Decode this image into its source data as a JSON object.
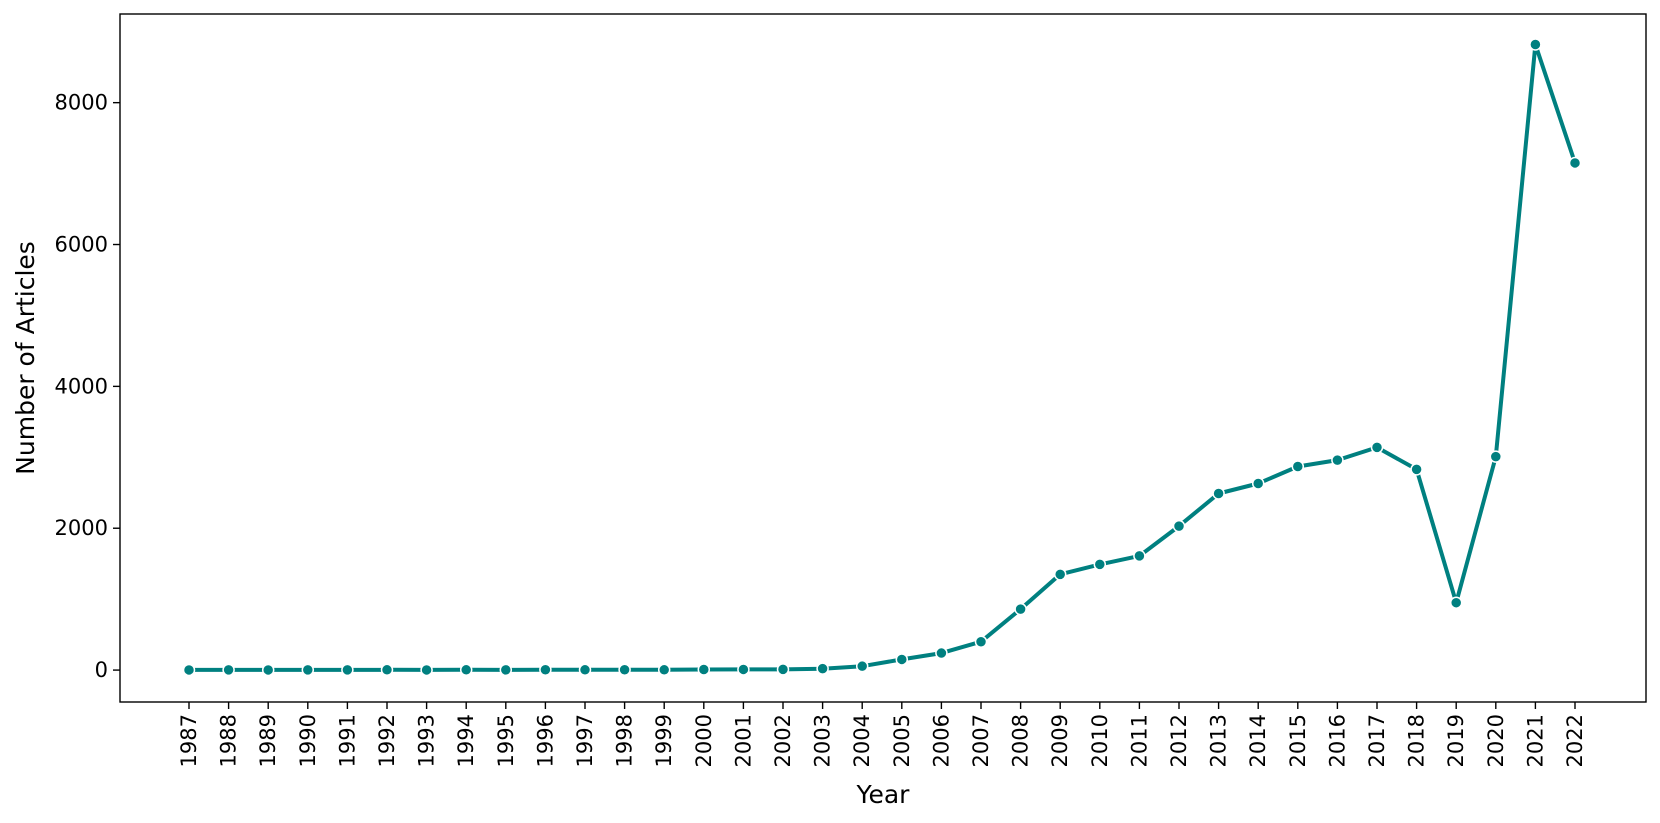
{
  "chart_data": {
    "type": "line",
    "title": "",
    "xlabel": "Year",
    "ylabel": "Number of Articles",
    "x": [
      "1987",
      "1988",
      "1989",
      "1990",
      "1991",
      "1992",
      "1993",
      "1994",
      "1995",
      "1996",
      "1997",
      "1998",
      "1999",
      "2000",
      "2001",
      "2002",
      "2003",
      "2004",
      "2005",
      "2006",
      "2007",
      "2008",
      "2009",
      "2010",
      "2011",
      "2012",
      "2013",
      "2014",
      "2015",
      "2016",
      "2017",
      "2018",
      "2019",
      "2020",
      "2021",
      "2022"
    ],
    "series": [
      {
        "values": [
          2,
          3,
          2,
          3,
          3,
          4,
          2,
          4,
          3,
          5,
          4,
          5,
          4,
          8,
          9,
          10,
          20,
          55,
          150,
          240,
          400,
          860,
          1350,
          1490,
          1610,
          2030,
          2490,
          2630,
          2870,
          2960,
          3140,
          2830,
          950,
          3010,
          8820,
          7150
        ],
        "color": "#008080"
      }
    ],
    "ylim": [
      -450,
      9250
    ],
    "yticks": [
      0,
      2000,
      4000,
      6000,
      8000
    ],
    "grid": false,
    "legend": "none"
  }
}
